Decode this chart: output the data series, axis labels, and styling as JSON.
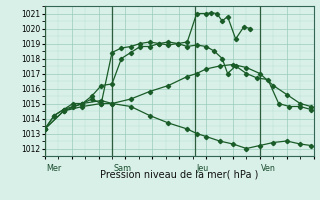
{
  "bg_color": "#cceedd",
  "plot_bg_color": "#d8f0e8",
  "grid_color": "#99ccbb",
  "line_color": "#1a5c28",
  "marker": "D",
  "marker_size": 2.2,
  "xlabel": "Pression niveau de la mer( hPa )",
  "xlim": [
    0,
    10.0
  ],
  "ylim": [
    1011.5,
    1021.5
  ],
  "yticks": [
    1012,
    1013,
    1014,
    1015,
    1016,
    1017,
    1018,
    1019,
    1020,
    1021
  ],
  "day_labels": [
    "Mer",
    "Sam",
    "Jeu",
    "Ven"
  ],
  "day_vlines": [
    0.0,
    2.5,
    5.6,
    8.0
  ],
  "series": [
    {
      "x": [
        0.0,
        0.35,
        0.7,
        1.05,
        1.4,
        1.75,
        2.1,
        2.5,
        2.85,
        3.2,
        3.55,
        3.9,
        4.25,
        4.6,
        4.95,
        5.3,
        5.65,
        6.0,
        6.2,
        6.4,
        6.6,
        6.8,
        7.1,
        7.4,
        7.65
      ],
      "y": [
        1013.3,
        1014.2,
        1014.6,
        1014.8,
        1015.0,
        1015.3,
        1015.0,
        1018.4,
        1018.7,
        1018.8,
        1019.0,
        1019.1,
        1019.0,
        1019.1,
        1019.0,
        1019.1,
        1021.0,
        1021.0,
        1021.05,
        1021.0,
        1020.5,
        1020.8,
        1019.3,
        1020.1,
        1020.0
      ]
    },
    {
      "x": [
        0.0,
        0.35,
        0.7,
        1.05,
        1.4,
        1.75,
        2.1,
        2.5,
        2.85,
        3.2,
        3.55,
        3.9,
        4.25,
        4.6,
        4.95,
        5.3,
        5.65,
        6.0,
        6.3,
        6.6,
        6.8,
        7.1,
        7.5,
        7.9,
        8.3,
        8.7,
        9.1,
        9.5,
        9.9
      ],
      "y": [
        1013.3,
        1014.2,
        1014.6,
        1015.0,
        1015.0,
        1015.5,
        1016.2,
        1016.3,
        1018.0,
        1018.4,
        1018.8,
        1018.8,
        1019.0,
        1018.9,
        1019.0,
        1018.8,
        1018.9,
        1018.8,
        1018.5,
        1018.0,
        1017.0,
        1017.5,
        1017.0,
        1016.7,
        1016.6,
        1015.0,
        1014.8,
        1014.8,
        1014.6
      ]
    },
    {
      "x": [
        0.0,
        0.7,
        1.4,
        2.1,
        2.5,
        3.2,
        3.9,
        4.6,
        5.3,
        5.65,
        6.0,
        6.5,
        7.0,
        7.5,
        8.0,
        8.5,
        9.0,
        9.5,
        9.9
      ],
      "y": [
        1013.3,
        1014.5,
        1015.0,
        1015.2,
        1015.0,
        1015.3,
        1015.8,
        1016.2,
        1016.8,
        1017.0,
        1017.3,
        1017.5,
        1017.6,
        1017.4,
        1017.0,
        1016.2,
        1015.6,
        1015.0,
        1014.8
      ]
    },
    {
      "x": [
        0.0,
        0.7,
        1.4,
        2.1,
        2.5,
        3.2,
        3.9,
        4.6,
        5.3,
        5.65,
        6.0,
        6.5,
        7.0,
        7.5,
        8.0,
        8.5,
        9.0,
        9.5,
        9.9
      ],
      "y": [
        1013.3,
        1014.5,
        1014.8,
        1015.0,
        1015.0,
        1014.8,
        1014.2,
        1013.7,
        1013.3,
        1013.0,
        1012.8,
        1012.5,
        1012.3,
        1012.0,
        1012.2,
        1012.4,
        1012.5,
        1012.3,
        1012.2
      ]
    }
  ]
}
